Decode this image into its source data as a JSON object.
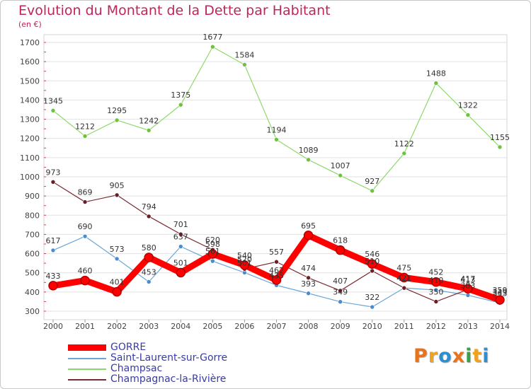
{
  "title": "Evolution du Montant de la Dette par Habitant",
  "unit": "(en €)",
  "logo": {
    "text": "Proxiti",
    "colors": [
      "#e8731a",
      "#f0a21f",
      "#2d8fd0",
      "#e8731a",
      "#3aa04a",
      "#f0a21f",
      "#2d8fd0"
    ]
  },
  "chart_data": {
    "type": "line",
    "title": "Evolution du Montant de la Dette par Habitant",
    "ylabel": "(en €)",
    "xlabel": "",
    "ylim": [
      300,
      1700
    ],
    "yticks": [
      300,
      400,
      500,
      600,
      700,
      800,
      900,
      1000,
      1100,
      1200,
      1300,
      1400,
      1500,
      1600,
      1700
    ],
    "x": [
      "2000",
      "2001",
      "2002",
      "2003",
      "2004",
      "2005",
      "2006",
      "2007",
      "2008",
      "2009",
      "2010",
      "2011",
      "2012",
      "2013",
      "2014"
    ],
    "grid": "horizontal",
    "legend_position": "bottom-left",
    "series": [
      {
        "name": "Champsac",
        "color": "#8ed86a",
        "marker": "#6ec23e",
        "width": 1.2,
        "values": [
          1345,
          1212,
          1295,
          1242,
          1375,
          1677,
          1584,
          1194,
          1089,
          1007,
          927,
          1122,
          1488,
          1322,
          1155
        ]
      },
      {
        "name": "Saint-Laurent-sur-Gorre",
        "color": "#6aa6d8",
        "marker": "#4a8ccc",
        "width": 1.2,
        "values": [
          617,
          690,
          573,
          453,
          637,
          561,
          501,
          435,
          393,
          349,
          322,
          421,
          410,
          383,
          343
        ]
      },
      {
        "name": "Champagnac-la-Rivière",
        "color": "#7a2a32",
        "marker": "#6a1e26",
        "width": 1.2,
        "values": [
          973,
          869,
          905,
          794,
          701,
          620,
          520,
          557,
          474,
          407,
          510,
          421,
          350,
          413,
          349
        ]
      },
      {
        "name": "GORRE",
        "color": "#ff0000",
        "marker": "#ff0000",
        "width": 9,
        "values": [
          433,
          460,
          401,
          580,
          501,
          598,
          540,
          462,
          695,
          618,
          546,
          475,
          452,
          417,
          359
        ]
      }
    ],
    "legend_order": [
      "GORRE",
      "Saint-Laurent-sur-Gorre",
      "Champsac",
      "Champagnac-la-Rivière"
    ]
  }
}
